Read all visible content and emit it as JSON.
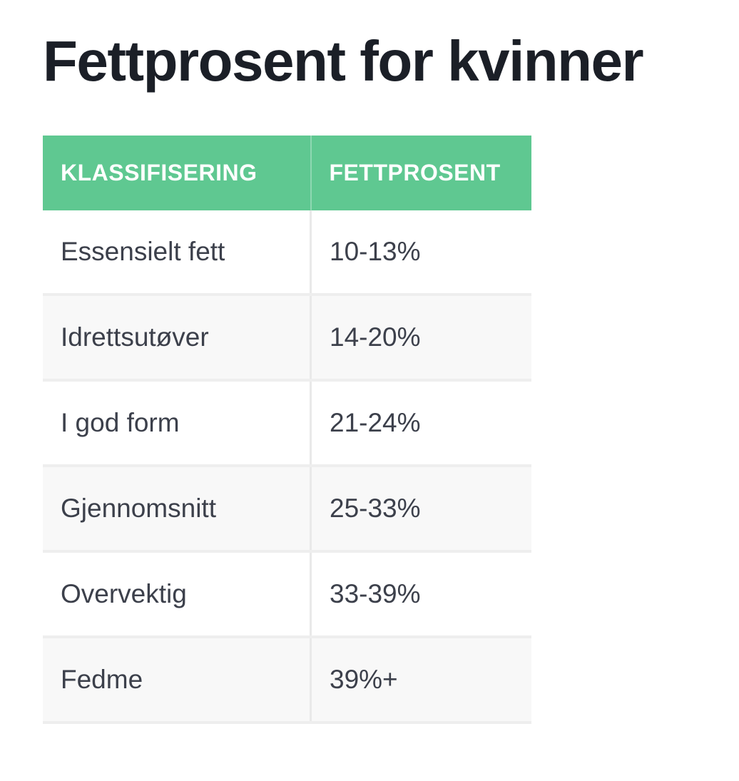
{
  "title": "Fettprosent for kvinner",
  "table": {
    "headers": [
      "KLASSIFISERING",
      "FETTPROSENT"
    ],
    "rows": [
      [
        "Essensielt fett",
        "10-13%"
      ],
      [
        "Idrettsutøver",
        "14-20%"
      ],
      [
        "I god form",
        "21-24%"
      ],
      [
        "Gjennomsnitt",
        "25-33%"
      ],
      [
        "Overvektig",
        "33-39%"
      ],
      [
        "Fedme",
        "39%+"
      ]
    ]
  },
  "colors": {
    "header": "#5fc891"
  }
}
